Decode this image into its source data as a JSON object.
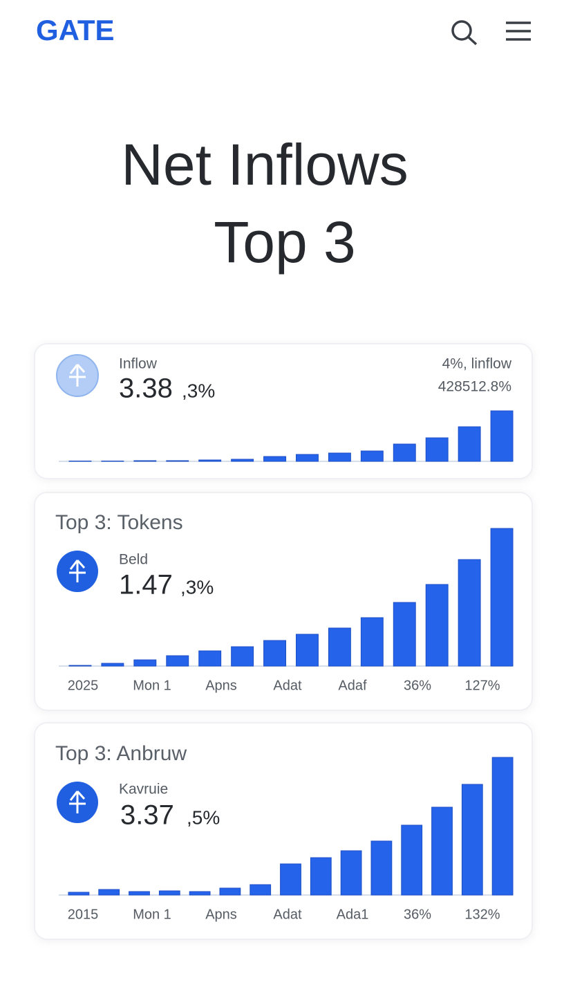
{
  "header": {
    "logo": "GATE"
  },
  "title": [
    "Net Inflows",
    "Top 3"
  ],
  "cards": [
    {
      "label": "Inflow",
      "value": "3.38",
      "suffix": ",3%",
      "right": [
        "4%, linflow",
        "428512.8%"
      ],
      "bars": [
        0.5,
        0.5,
        1,
        1,
        2,
        3,
        7,
        10,
        12,
        15,
        25,
        34,
        50,
        73
      ]
    },
    {
      "heading": "Top 3: Tokens",
      "label": "Beld",
      "value": "1.47",
      "suffix": ",3%",
      "bars": [
        1,
        4,
        9,
        15,
        22,
        28,
        37,
        46,
        55,
        70,
        92,
        118,
        154,
        199
      ],
      "x_labels": [
        "2025",
        "Mon 1",
        "Apns",
        "Adat",
        "Adaf",
        "36%",
        "127%"
      ]
    },
    {
      "heading": "Top 3: Anbruw",
      "label": "Kavruie",
      "value": "3.37",
      "suffix": ",5%",
      "bars": [
        4,
        8,
        5,
        6,
        5,
        10,
        15,
        45,
        54,
        64,
        78,
        101,
        127,
        160,
        199
      ],
      "x_labels": [
        "2015",
        "Mon 1",
        "Apns",
        "Adat",
        "Ada1",
        "36%",
        "132%"
      ]
    }
  ]
}
